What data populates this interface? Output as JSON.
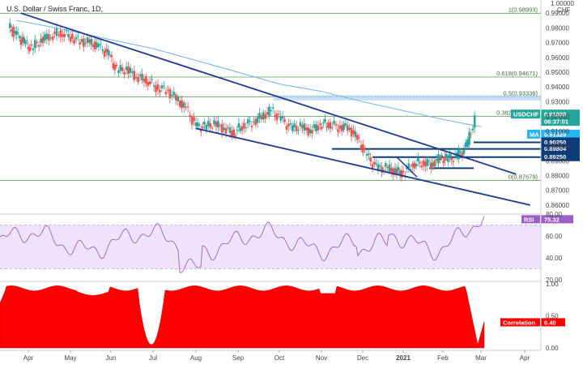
{
  "chart_data": [
    {
      "type": "candlestick",
      "title": "U.S. Dollar / Swiss Franc, 1D,",
      "currency_label": "CHF",
      "top_axis_value": "1.00000",
      "ylim": [
        0.855,
        0.9945
      ],
      "y_ticks": [
        "0.99000",
        "0.98000",
        "0.97000",
        "0.96000",
        "0.95000",
        "0.94000",
        "0.93000",
        "0.92000",
        "0.91000",
        "0.90000",
        "0.89000",
        "0.88000",
        "0.87000",
        "0.86000"
      ],
      "x_ticks": [
        "Apr",
        "May",
        "Jun",
        "Jul",
        "Aug",
        "Sep",
        "Oct",
        "Nov",
        "Dec",
        "2021",
        "Feb",
        "Mar",
        "Apr"
      ],
      "fib_levels": [
        {
          "label": "1(0.98993)",
          "value": 0.98993
        },
        {
          "label": "0.618(0.94671)",
          "value": 0.94671
        },
        {
          "label": "0.5(0.93336)",
          "value": 0.93336
        },
        {
          "label": "0.382(0.92001)",
          "value": 0.92001
        },
        {
          "label": "0(0.87679)",
          "value": 0.87679
        }
      ],
      "price_badges": [
        {
          "name": "USDCHF",
          "value": "0.91808",
          "sub": "06:37:01",
          "color": "#26a69a"
        },
        {
          "name": "MA",
          "value": "0.91329",
          "color": "#29b6f6"
        },
        {
          "name": "",
          "value": "0.90250",
          "color": "#0d3c78"
        },
        {
          "name": "",
          "value": "0.89804",
          "color": "#0d3c78"
        },
        {
          "name": "",
          "value": "0.89250",
          "color": "#0d3c78"
        }
      ],
      "horizontal_levels": [
        0.9025,
        0.89804,
        0.8925,
        0.885
      ],
      "trendlines": [
        {
          "from": [
            "Mar-24",
            0.99
          ],
          "to": [
            "Mar-25",
            0.881
          ]
        },
        {
          "from": [
            "Aug-01",
            0.912
          ],
          "to": [
            "Apr-05",
            0.86
          ]
        }
      ],
      "ma_series": {
        "name": "MA",
        "x": [
          "Mar-20",
          "Apr-10",
          "May-01",
          "Jun-01",
          "Jul-01",
          "Aug-01",
          "Sep-01",
          "Oct-01",
          "Nov-01",
          "Dec-01",
          "Jan-01",
          "Feb-01",
          "Mar-01"
        ],
        "y": [
          0.985,
          0.982,
          0.978,
          0.972,
          0.966,
          0.958,
          0.95,
          0.942,
          0.937,
          0.93,
          0.924,
          0.918,
          0.913
        ]
      },
      "ohlc": {
        "x": [
          "Mar-20",
          "Mar-27",
          "Apr-03",
          "Apr-10",
          "Apr-17",
          "Apr-24",
          "May-01",
          "May-08",
          "May-15",
          "May-22",
          "May-29",
          "Jun-05",
          "Jun-12",
          "Jun-19",
          "Jun-26",
          "Jul-03",
          "Jul-10",
          "Jul-17",
          "Jul-24",
          "Jul-31",
          "Aug-07",
          "Aug-14",
          "Aug-21",
          "Aug-28",
          "Sep-04",
          "Sep-11",
          "Sep-18",
          "Sep-25",
          "Oct-02",
          "Oct-09",
          "Oct-16",
          "Oct-23",
          "Oct-30",
          "Nov-06",
          "Nov-13",
          "Nov-20",
          "Nov-27",
          "Dec-04",
          "Dec-11",
          "Dec-18",
          "Dec-25",
          "Jan-01",
          "Jan-08",
          "Jan-15",
          "Jan-22",
          "Jan-29",
          "Feb-05",
          "Feb-12",
          "Feb-19",
          "Feb-26"
        ],
        "close": [
          0.975,
          0.97,
          0.966,
          0.972,
          0.975,
          0.977,
          0.974,
          0.971,
          0.97,
          0.967,
          0.962,
          0.951,
          0.952,
          0.947,
          0.945,
          0.94,
          0.938,
          0.932,
          0.925,
          0.913,
          0.913,
          0.915,
          0.912,
          0.909,
          0.914,
          0.916,
          0.92,
          0.924,
          0.918,
          0.912,
          0.913,
          0.91,
          0.915,
          0.915,
          0.913,
          0.913,
          0.905,
          0.893,
          0.885,
          0.885,
          0.883,
          0.882,
          0.888,
          0.889,
          0.888,
          0.892,
          0.891,
          0.893,
          0.899,
          0.918
        ]
      },
      "annotation_boxes": [
        {
          "label": "zone",
          "ymin": 0.9323,
          "ymax": 0.9336
        }
      ]
    },
    {
      "type": "line",
      "title": "RSI",
      "series": [
        {
          "name": "RSI",
          "value": "75.32",
          "color": "#9c5fc7"
        }
      ],
      "ylim": [
        20,
        80
      ],
      "y_ticks": [
        "80.00",
        "60.00",
        "40.00",
        "20.00"
      ],
      "band": [
        30,
        70
      ]
    },
    {
      "type": "area",
      "title": "Correlation",
      "series": [
        {
          "name": "Correlation",
          "value": "0.40",
          "color": "#ff0000"
        }
      ],
      "ylim": [
        0,
        1
      ],
      "y_ticks": [
        "1.00",
        "0.50",
        "0.00"
      ]
    }
  ]
}
